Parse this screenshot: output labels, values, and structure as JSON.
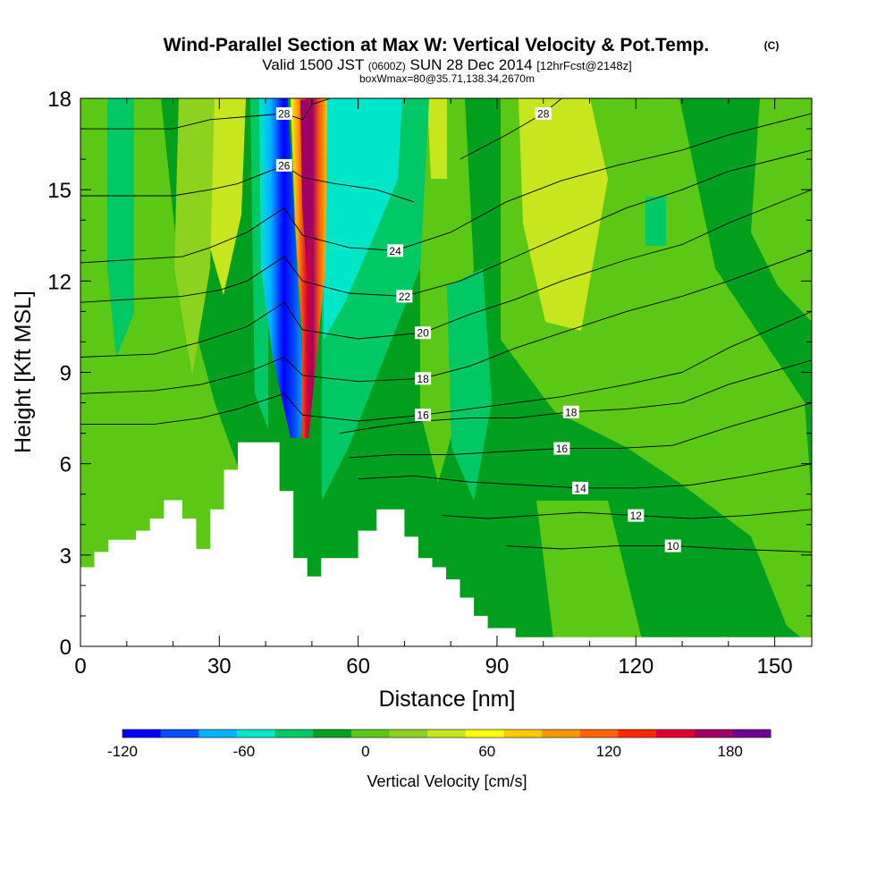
{
  "title": {
    "main": "Wind-Parallel Section at Max W: Vertical Velocity & Pot.Temp.",
    "copyright": "(C)",
    "valid_prefix": "Valid 1500 JST",
    "valid_utc": "(0600Z)",
    "valid_date": "SUN 28 Dec 2014",
    "forecast": "[12hrFcst@2148z]",
    "box_info": "boxWmax=80@35.71,138.34,2670m"
  },
  "chart_data": {
    "type": "heatmap",
    "xlabel": "Distance [nm]",
    "ylabel": "Height [Kft MSL]",
    "xlim": [
      0,
      158
    ],
    "ylim": [
      0,
      18
    ],
    "x_ticks": [
      "0",
      "30",
      "60",
      "90",
      "120",
      "150"
    ],
    "y_ticks": [
      "0",
      "3",
      "6",
      "9",
      "12",
      "15",
      "18"
    ],
    "colorbar": {
      "label": "Vertical Velocity [cm/s]",
      "range": [
        -120,
        200
      ],
      "tick_labels": [
        "-120",
        "-60",
        "0",
        "60",
        "120",
        "180"
      ],
      "colors": [
        "#0000ff",
        "#0050ff",
        "#00b4ff",
        "#00e6c8",
        "#00c864",
        "#00a01e",
        "#5ac814",
        "#8cd21e",
        "#c8e61e",
        "#ffff00",
        "#ffc800",
        "#ff9600",
        "#ff6400",
        "#ff2800",
        "#dc0032",
        "#a00064",
        "#6e0096"
      ]
    },
    "terrain": [
      [
        0,
        2.6
      ],
      [
        3,
        2.6
      ],
      [
        3,
        3.1
      ],
      [
        6,
        3.1
      ],
      [
        6,
        3.5
      ],
      [
        12,
        3.5
      ],
      [
        12,
        3.8
      ],
      [
        15,
        3.8
      ],
      [
        15,
        4.2
      ],
      [
        18,
        4.2
      ],
      [
        18,
        4.8
      ],
      [
        22,
        4.8
      ],
      [
        22,
        4.2
      ],
      [
        25,
        4.2
      ],
      [
        25,
        3.2
      ],
      [
        28,
        3.2
      ],
      [
        28,
        4.5
      ],
      [
        31,
        4.5
      ],
      [
        31,
        5.8
      ],
      [
        34,
        5.8
      ],
      [
        34,
        6.7
      ],
      [
        43,
        6.7
      ],
      [
        43,
        5.1
      ],
      [
        46,
        5.1
      ],
      [
        46,
        2.9
      ],
      [
        49,
        2.9
      ],
      [
        49,
        2.3
      ],
      [
        52,
        2.3
      ],
      [
        52,
        2.9
      ],
      [
        60,
        2.9
      ],
      [
        60,
        3.8
      ],
      [
        64,
        3.8
      ],
      [
        64,
        4.5
      ],
      [
        70,
        4.5
      ],
      [
        70,
        3.6
      ],
      [
        73,
        3.6
      ],
      [
        73,
        2.9
      ],
      [
        76,
        2.9
      ],
      [
        76,
        2.6
      ],
      [
        79,
        2.6
      ],
      [
        79,
        2.2
      ],
      [
        82,
        2.2
      ],
      [
        82,
        1.6
      ],
      [
        85,
        1.6
      ],
      [
        85,
        1.0
      ],
      [
        88,
        1.0
      ],
      [
        88,
        0.6
      ],
      [
        94,
        0.6
      ],
      [
        94,
        0.3
      ],
      [
        158,
        0.3
      ]
    ],
    "theta_contours": [
      {
        "label": "28",
        "pts": [
          [
            0,
            17.0
          ],
          [
            20,
            17.0
          ],
          [
            28,
            17.3
          ],
          [
            44,
            17.5
          ],
          [
            48,
            17.3
          ],
          [
            50,
            17.8
          ],
          [
            54,
            18.0
          ]
        ]
      },
      {
        "label": "26",
        "pts": [
          [
            0,
            14.8
          ],
          [
            20,
            14.8
          ],
          [
            28,
            15.0
          ],
          [
            34,
            15.2
          ],
          [
            44,
            15.8
          ],
          [
            48,
            15.4
          ],
          [
            55,
            15.2
          ],
          [
            64,
            15.0
          ],
          [
            72,
            14.6
          ]
        ]
      },
      {
        "label": "28",
        "pts": [
          [
            82,
            16.0
          ],
          [
            92,
            16.8
          ],
          [
            100,
            17.5
          ],
          [
            104,
            18.0
          ]
        ]
      },
      {
        "label": "24",
        "pts": [
          [
            0,
            12.6
          ],
          [
            22,
            12.8
          ],
          [
            28,
            13.1
          ],
          [
            36,
            13.6
          ],
          [
            44,
            14.4
          ],
          [
            48,
            13.5
          ],
          [
            58,
            13.1
          ],
          [
            68,
            13.0
          ],
          [
            80,
            13.6
          ],
          [
            92,
            14.6
          ],
          [
            104,
            15.3
          ],
          [
            116,
            15.8
          ],
          [
            130,
            16.3
          ],
          [
            140,
            16.8
          ],
          [
            158,
            17.5
          ]
        ]
      },
      {
        "label": "22",
        "pts": [
          [
            0,
            11.3
          ],
          [
            22,
            11.5
          ],
          [
            30,
            11.7
          ],
          [
            36,
            12.0
          ],
          [
            44,
            12.8
          ],
          [
            48,
            12.0
          ],
          [
            58,
            11.6
          ],
          [
            70,
            11.5
          ],
          [
            82,
            12.0
          ],
          [
            94,
            12.8
          ],
          [
            106,
            13.6
          ],
          [
            118,
            14.4
          ],
          [
            130,
            15.0
          ],
          [
            140,
            15.6
          ],
          [
            158,
            16.3
          ]
        ]
      },
      {
        "label": "20",
        "pts": [
          [
            0,
            9.5
          ],
          [
            16,
            9.6
          ],
          [
            26,
            10.0
          ],
          [
            36,
            10.5
          ],
          [
            44,
            11.3
          ],
          [
            48,
            10.4
          ],
          [
            60,
            10.1
          ],
          [
            74,
            10.3
          ],
          [
            84,
            10.9
          ],
          [
            94,
            11.4
          ],
          [
            104,
            12.0
          ],
          [
            118,
            12.7
          ],
          [
            130,
            13.2
          ],
          [
            140,
            13.9
          ],
          [
            158,
            15.0
          ]
        ]
      },
      {
        "label": "18",
        "pts": [
          [
            0,
            8.3
          ],
          [
            16,
            8.4
          ],
          [
            26,
            8.6
          ],
          [
            36,
            9.0
          ],
          [
            44,
            9.5
          ],
          [
            48,
            8.9
          ],
          [
            60,
            8.7
          ],
          [
            74,
            8.8
          ],
          [
            84,
            9.2
          ],
          [
            94,
            9.8
          ],
          [
            104,
            10.3
          ],
          [
            118,
            11.0
          ],
          [
            130,
            11.5
          ],
          [
            140,
            12.0
          ],
          [
            158,
            13.0
          ]
        ]
      },
      {
        "label": "16",
        "pts": [
          [
            0,
            7.3
          ],
          [
            16,
            7.3
          ],
          [
            26,
            7.5
          ],
          [
            34,
            7.8
          ],
          [
            44,
            8.3
          ],
          [
            48,
            7.6
          ],
          [
            60,
            7.4
          ],
          [
            74,
            7.6
          ],
          [
            84,
            7.8
          ],
          [
            94,
            8.0
          ],
          [
            104,
            8.2
          ],
          [
            118,
            8.6
          ],
          [
            130,
            9.0
          ],
          [
            140,
            9.8
          ],
          [
            158,
            11.0
          ]
        ]
      },
      {
        "label": "18",
        "pts": [
          [
            56,
            7.0
          ],
          [
            64,
            7.2
          ],
          [
            74,
            7.4
          ],
          [
            84,
            7.5
          ],
          [
            94,
            7.5
          ],
          [
            106,
            7.7
          ],
          [
            118,
            7.8
          ],
          [
            130,
            8.0
          ],
          [
            140,
            8.6
          ],
          [
            158,
            9.4
          ]
        ]
      },
      {
        "label": "16",
        "pts": [
          [
            58,
            6.2
          ],
          [
            68,
            6.3
          ],
          [
            80,
            6.3
          ],
          [
            92,
            6.4
          ],
          [
            104,
            6.5
          ],
          [
            116,
            6.5
          ],
          [
            128,
            6.6
          ],
          [
            140,
            7.2
          ],
          [
            158,
            8.0
          ]
        ]
      },
      {
        "label": "14",
        "pts": [
          [
            60,
            5.5
          ],
          [
            72,
            5.6
          ],
          [
            84,
            5.4
          ],
          [
            96,
            5.3
          ],
          [
            108,
            5.2
          ],
          [
            120,
            5.2
          ],
          [
            132,
            5.3
          ],
          [
            144,
            5.6
          ],
          [
            158,
            6.0
          ]
        ]
      },
      {
        "label": "12",
        "pts": [
          [
            78,
            4.3
          ],
          [
            88,
            4.2
          ],
          [
            98,
            4.3
          ],
          [
            108,
            4.4
          ],
          [
            120,
            4.3
          ],
          [
            132,
            4.2
          ],
          [
            144,
            4.3
          ],
          [
            158,
            4.5
          ]
        ]
      },
      {
        "label": "10",
        "pts": [
          [
            92,
            3.3
          ],
          [
            104,
            3.2
          ],
          [
            116,
            3.3
          ],
          [
            128,
            3.3
          ],
          [
            140,
            3.2
          ],
          [
            158,
            3.1
          ]
        ]
      }
    ]
  }
}
